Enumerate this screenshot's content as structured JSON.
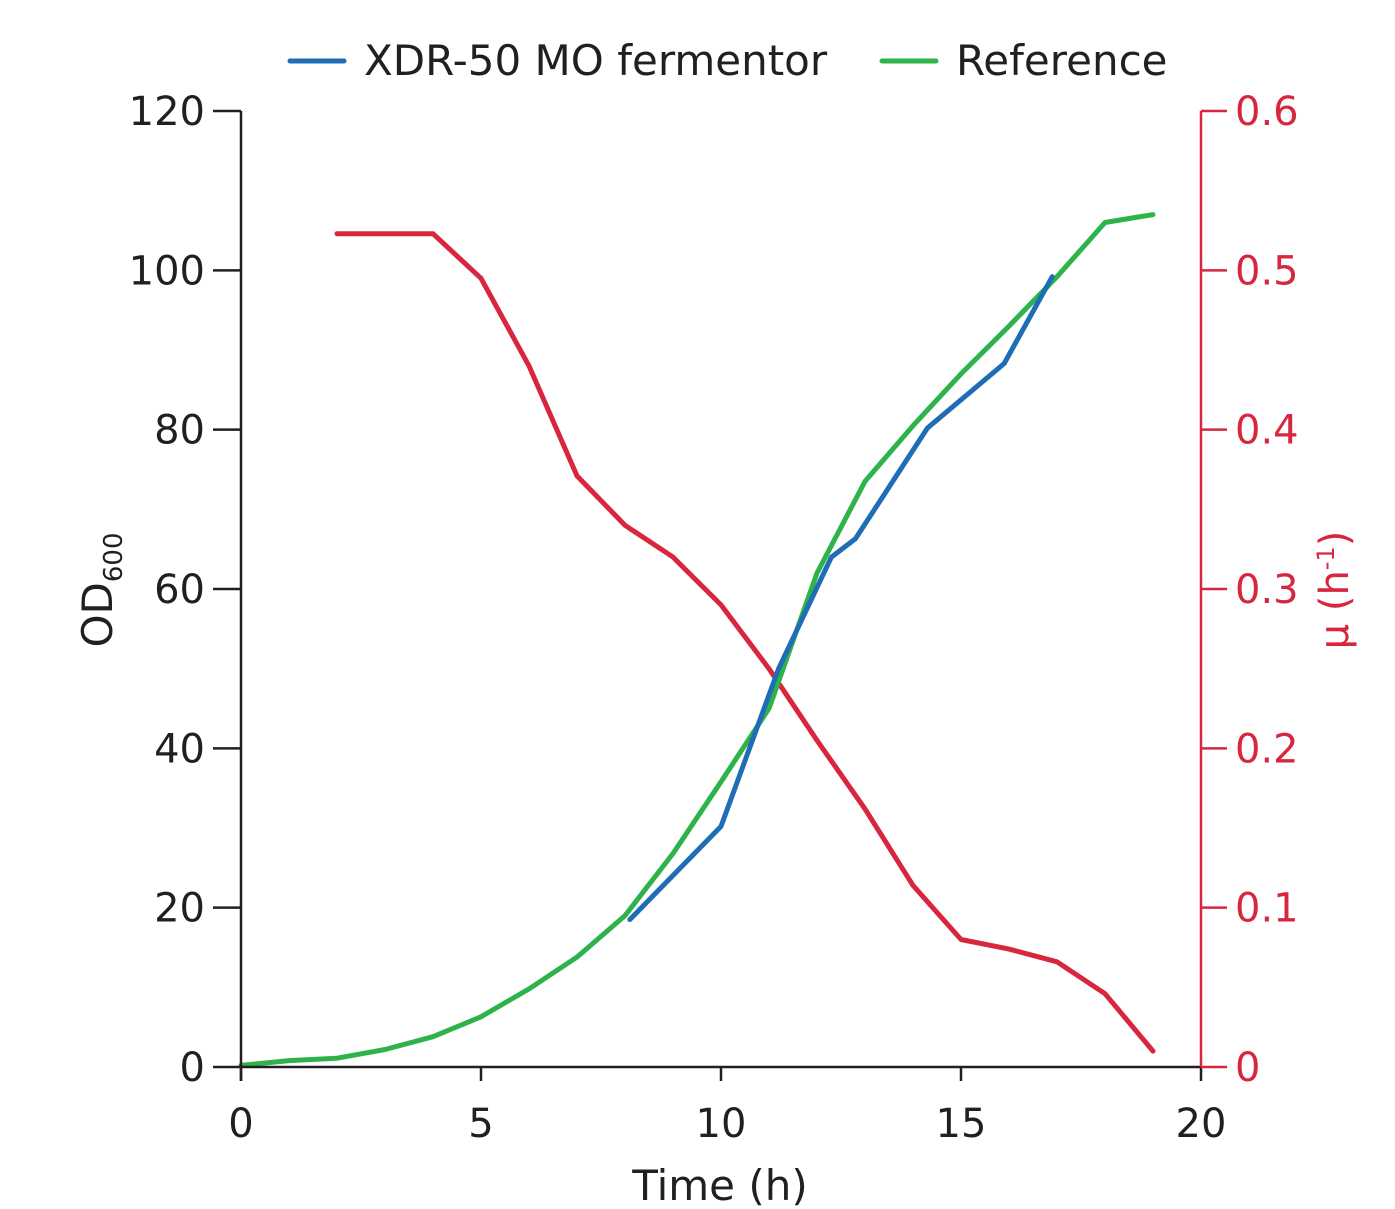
{
  "chart_data": {
    "type": "line",
    "xlabel": "Time (h)",
    "ylabel": {
      "main": "OD",
      "sub": "600"
    },
    "y2label": {
      "pre": "µ (h",
      "sup": "-1",
      "post": ")"
    },
    "xlim": [
      0,
      20
    ],
    "ylim": [
      0,
      120
    ],
    "y2lim": [
      0,
      0.6
    ],
    "xticks": [
      0,
      5,
      10,
      15,
      20
    ],
    "yticks": [
      0,
      20,
      40,
      60,
      80,
      100,
      120
    ],
    "y2ticks": [
      0,
      0.1,
      0.2,
      0.3,
      0.4,
      0.5,
      0.6
    ],
    "y2ticklabels": [
      "0",
      "0.1",
      "0.2",
      "0.3",
      "0.4",
      "0.5",
      "0.6"
    ],
    "grid": false,
    "legend": "top-center",
    "series": [
      {
        "name": "XDR-50 MO fermentor",
        "axis": "left",
        "color": "#1f6db5",
        "x": [
          8.1,
          10.0,
          11.2,
          12.3,
          12.8,
          14.3,
          15.9,
          16.9
        ],
        "y": [
          18.5,
          30.2,
          50.0,
          64.0,
          66.3,
          80.2,
          88.3,
          99.2
        ]
      },
      {
        "name": "Reference",
        "axis": "left",
        "color": "#2db34a",
        "x": [
          0,
          1,
          2,
          3,
          4,
          5,
          6,
          7,
          8,
          9,
          10,
          11,
          12,
          13,
          14,
          15,
          16,
          17,
          18,
          19
        ],
        "y": [
          0.2,
          0.8,
          1.1,
          2.2,
          3.8,
          6.3,
          9.8,
          13.8,
          19.0,
          26.8,
          35.8,
          45.0,
          62.0,
          73.5,
          80.5,
          87.0,
          93.0,
          99.2,
          106.0,
          107.0
        ]
      },
      {
        "name": "",
        "axis": "right",
        "color": "#d7263d",
        "x": [
          2,
          3,
          4,
          5,
          6,
          7,
          8,
          9,
          10,
          11,
          12,
          13,
          14,
          15,
          16,
          17,
          18,
          19
        ],
        "y": [
          0.523,
          0.523,
          0.523,
          0.495,
          0.44,
          0.371,
          0.34,
          0.32,
          0.29,
          0.25,
          0.205,
          0.162,
          0.114,
          0.08,
          0.074,
          0.066,
          0.046,
          0.01
        ]
      }
    ]
  }
}
